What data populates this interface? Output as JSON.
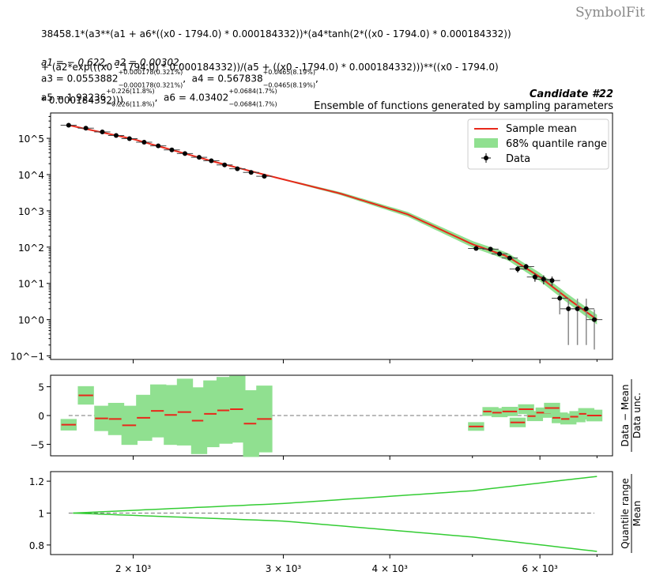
{
  "formula_lines": [
    "38458.1*(a3**(a1 + a6*((x0 - 1794.0) * 0.000184332))*(a4*tanh(2*((x0 - 1794.0) * 0.000184332))",
    "+ (a2*exp(((x0 - 1794.0) * 0.000184332))/(a5 + ((x0 - 1794.0) * 0.000184332)))**((x0 - 1794.0)",
    "* 0.000184332)))"
  ],
  "watermark": "SymbolFit",
  "params": {
    "a1": "a1 = − 0.622,",
    "a2": "a2 = 0.00302,",
    "a3": {
      "name": "a3 = ",
      "val": "0.0553882",
      "up": "+0.000178(0.321%)",
      "dn": "−0.000178(0.321%)"
    },
    "a4": {
      "name": "a4 = ",
      "val": "0.567838",
      "up": "+0.0465(8.19%)",
      "dn": "−0.0465(8.19%)"
    },
    "a5": {
      "name": "a5 = ",
      "val": "1.92236",
      "up": "+0.226(11.8%)",
      "dn": "−0.226(11.8%)"
    },
    "a6": {
      "name": "a6 = ",
      "val": "4.03402",
      "up": "+0.0684(1.7%)",
      "dn": "−0.0684(1.7%)"
    }
  },
  "candidate": "Candidate #22",
  "subtitle": "Ensemble of functions generated by sampling parameters",
  "legend": {
    "mean": "Sample mean",
    "band": "68% quantile range",
    "data": "Data"
  },
  "colors": {
    "mean": "#e8281a",
    "band": "#90e090",
    "ratio_line": "#33cc33",
    "data": "#000000"
  },
  "chart_data": [
    {
      "type": "scatter",
      "yscale": "log",
      "xscale": "log",
      "xlim": [
        1600,
        7300
      ],
      "ylim": [
        0.08,
        500000
      ],
      "yticks": [
        "10^−1",
        "10^0",
        "10^1",
        "10^2",
        "10^3",
        "10^4",
        "10^5"
      ],
      "legend_position": "top-right",
      "data_points": [
        {
          "x": 1680,
          "y": 230000
        },
        {
          "x": 1760,
          "y": 190000
        },
        {
          "x": 1840,
          "y": 150000
        },
        {
          "x": 1910,
          "y": 120000
        },
        {
          "x": 1980,
          "y": 98000
        },
        {
          "x": 2060,
          "y": 78000
        },
        {
          "x": 2140,
          "y": 62000
        },
        {
          "x": 2220,
          "y": 48000
        },
        {
          "x": 2300,
          "y": 38000
        },
        {
          "x": 2390,
          "y": 30000
        },
        {
          "x": 2470,
          "y": 24000
        },
        {
          "x": 2560,
          "y": 18500
        },
        {
          "x": 2650,
          "y": 14500
        },
        {
          "x": 2750,
          "y": 11500
        },
        {
          "x": 2850,
          "y": 9000
        },
        {
          "x": 5050,
          "y": 92
        },
        {
          "x": 5250,
          "y": 88
        },
        {
          "x": 5380,
          "y": 65
        },
        {
          "x": 5530,
          "y": 50
        },
        {
          "x": 5650,
          "y": 25
        },
        {
          "x": 5780,
          "y": 29
        },
        {
          "x": 5920,
          "y": 15
        },
        {
          "x": 6060,
          "y": 13
        },
        {
          "x": 6200,
          "y": 12
        },
        {
          "x": 6330,
          "y": 3.9
        },
        {
          "x": 6480,
          "y": 2
        },
        {
          "x": 6640,
          "y": 2
        },
        {
          "x": 6800,
          "y": 2
        },
        {
          "x": 6950,
          "y": 1
        }
      ]
    },
    {
      "type": "bar",
      "ylabel": [
        "Data − Mean",
        "Data unc."
      ],
      "yticks": [
        "5",
        "0",
        "−5"
      ],
      "ylim": [
        -7,
        7
      ],
      "pulls": [
        {
          "x": 1680,
          "v": -1.6
        },
        {
          "x": 1760,
          "v": 3.5
        },
        {
          "x": 1840,
          "v": -0.5
        },
        {
          "x": 1910,
          "v": -0.6
        },
        {
          "x": 1980,
          "v": -1.7
        },
        {
          "x": 2060,
          "v": -0.4
        },
        {
          "x": 2140,
          "v": 0.8
        },
        {
          "x": 2220,
          "v": 0.1
        },
        {
          "x": 2300,
          "v": 0.6
        },
        {
          "x": 2390,
          "v": -0.9
        },
        {
          "x": 2470,
          "v": 0.3
        },
        {
          "x": 2560,
          "v": 0.9
        },
        {
          "x": 2650,
          "v": 1.1
        },
        {
          "x": 2750,
          "v": -1.4
        },
        {
          "x": 2850,
          "v": -0.6
        },
        {
          "x": 5050,
          "v": -1.9
        },
        {
          "x": 5250,
          "v": 0.7
        },
        {
          "x": 5380,
          "v": 0.5
        },
        {
          "x": 5530,
          "v": 0.7
        },
        {
          "x": 5650,
          "v": -1.2
        },
        {
          "x": 5780,
          "v": 1.1
        },
        {
          "x": 5920,
          "v": -0.1
        },
        {
          "x": 6060,
          "v": 0.5
        },
        {
          "x": 6200,
          "v": 1.3
        },
        {
          "x": 6330,
          "v": -0.4
        },
        {
          "x": 6480,
          "v": -0.6
        },
        {
          "x": 6640,
          "v": -0.2
        },
        {
          "x": 6800,
          "v": 0.3
        },
        {
          "x": 6950,
          "v": 0.0
        }
      ]
    },
    {
      "type": "line",
      "ylabel": [
        "Quantile range",
        "Mean"
      ],
      "yticks": [
        "1.2",
        "1",
        "0.8"
      ],
      "ylim": [
        0.74,
        1.26
      ],
      "xticks": [
        "2 × 10³",
        "3 × 10³",
        "4 × 10³",
        "6 × 10³"
      ],
      "upper": [
        {
          "x": 1700,
          "y": 1.0
        },
        {
          "x": 3000,
          "y": 1.06
        },
        {
          "x": 5000,
          "y": 1.14
        },
        {
          "x": 7000,
          "y": 1.23
        }
      ],
      "lower": [
        {
          "x": 1700,
          "y": 1.0
        },
        {
          "x": 3000,
          "y": 0.95
        },
        {
          "x": 5000,
          "y": 0.85
        },
        {
          "x": 7000,
          "y": 0.76
        }
      ]
    }
  ]
}
